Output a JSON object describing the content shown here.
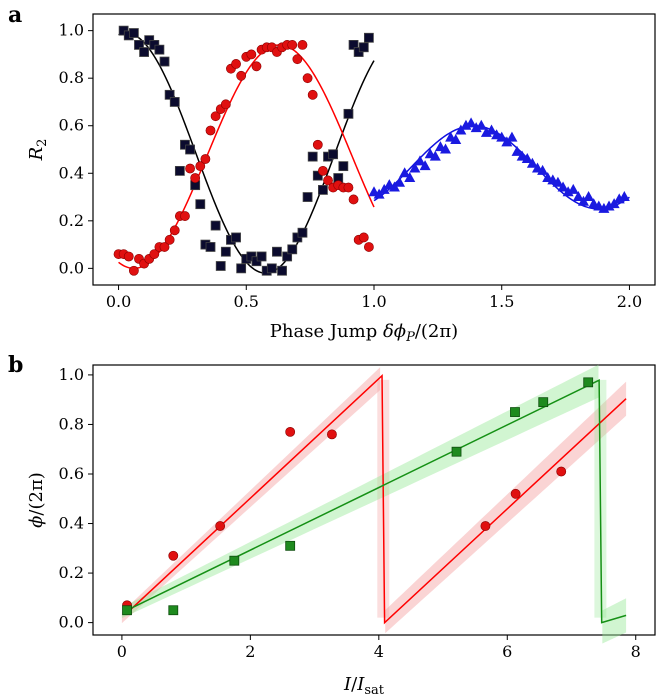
{
  "chart_data": [
    {
      "type": "scatter",
      "panel_label": "a",
      "xlabel": "Phase Jump δϕP/(2π)",
      "ylabel": "R2",
      "xlim": [
        -0.1,
        2.1
      ],
      "ylim": [
        -0.07,
        1.07
      ],
      "xticks": [
        0.0,
        0.5,
        1.0,
        1.5,
        2.0
      ],
      "xtick_labels": [
        "0.0",
        "0.5",
        "1.0",
        "1.5",
        "2.0"
      ],
      "yticks": [
        0.0,
        0.2,
        0.4,
        0.6,
        0.8,
        1.0
      ],
      "ytick_labels": [
        "0.0",
        "0.2",
        "0.4",
        "0.6",
        "0.8",
        "1.0"
      ],
      "grid": false,
      "series": [
        {
          "marker": "square",
          "color": "#0b0b2e",
          "fit_color": "#000000",
          "x": [
            0.02,
            0.04,
            0.06,
            0.08,
            0.1,
            0.12,
            0.14,
            0.16,
            0.18,
            0.2,
            0.22,
            0.24,
            0.26,
            0.28,
            0.3,
            0.32,
            0.34,
            0.36,
            0.38,
            0.4,
            0.42,
            0.44,
            0.46,
            0.48,
            0.5,
            0.52,
            0.54,
            0.56,
            0.58,
            0.6,
            0.62,
            0.64,
            0.66,
            0.68,
            0.7,
            0.72,
            0.74,
            0.76,
            0.78,
            0.8,
            0.82,
            0.84,
            0.86,
            0.88,
            0.9,
            0.92,
            0.94,
            0.96,
            0.98
          ],
          "y": [
            1.0,
            0.98,
            0.99,
            0.94,
            0.91,
            0.96,
            0.94,
            0.92,
            0.87,
            0.73,
            0.7,
            0.41,
            0.52,
            0.5,
            0.35,
            0.27,
            0.1,
            0.09,
            0.18,
            0.01,
            0.07,
            0.12,
            0.13,
            0.0,
            0.04,
            0.05,
            0.03,
            0.05,
            -0.01,
            0.0,
            0.07,
            -0.01,
            0.05,
            0.08,
            0.13,
            0.15,
            0.3,
            0.47,
            0.39,
            0.33,
            0.47,
            0.48,
            0.38,
            0.43,
            0.65,
            0.94,
            0.91,
            0.93,
            0.97
          ]
        },
        {
          "marker": "circle",
          "color": "#e01010",
          "fit_color": "#ff0000",
          "x": [
            0.0,
            0.02,
            0.04,
            0.06,
            0.08,
            0.1,
            0.12,
            0.14,
            0.16,
            0.18,
            0.2,
            0.22,
            0.24,
            0.26,
            0.28,
            0.3,
            0.32,
            0.34,
            0.36,
            0.38,
            0.4,
            0.42,
            0.44,
            0.46,
            0.48,
            0.5,
            0.52,
            0.54,
            0.56,
            0.58,
            0.6,
            0.62,
            0.64,
            0.66,
            0.68,
            0.7,
            0.72,
            0.74,
            0.76,
            0.78,
            0.8,
            0.82,
            0.84,
            0.86,
            0.88,
            0.9,
            0.92,
            0.94,
            0.96,
            0.98
          ],
          "y": [
            0.06,
            0.06,
            0.05,
            -0.01,
            0.04,
            0.02,
            0.04,
            0.06,
            0.09,
            0.09,
            0.12,
            0.16,
            0.22,
            0.22,
            0.42,
            0.38,
            0.43,
            0.46,
            0.58,
            0.64,
            0.67,
            0.69,
            0.84,
            0.86,
            0.81,
            0.89,
            0.9,
            0.85,
            0.92,
            0.93,
            0.93,
            0.91,
            0.93,
            0.94,
            0.94,
            0.88,
            0.94,
            0.8,
            0.73,
            0.52,
            0.41,
            0.37,
            0.34,
            0.35,
            0.34,
            0.34,
            0.29,
            0.12,
            0.13,
            0.09
          ]
        },
        {
          "marker": "triangle",
          "color": "#1a1ae0",
          "fit_color": "#1010e0",
          "x": [
            1.0,
            1.02,
            1.04,
            1.06,
            1.08,
            1.1,
            1.12,
            1.14,
            1.16,
            1.18,
            1.2,
            1.22,
            1.24,
            1.26,
            1.28,
            1.3,
            1.32,
            1.34,
            1.36,
            1.38,
            1.4,
            1.42,
            1.44,
            1.46,
            1.48,
            1.5,
            1.52,
            1.54,
            1.56,
            1.58,
            1.6,
            1.62,
            1.64,
            1.66,
            1.68,
            1.7,
            1.72,
            1.74,
            1.76,
            1.78,
            1.8,
            1.82,
            1.84,
            1.86,
            1.88,
            1.9,
            1.92,
            1.94,
            1.96,
            1.98
          ],
          "y": [
            0.32,
            0.31,
            0.33,
            0.35,
            0.34,
            0.36,
            0.4,
            0.38,
            0.42,
            0.45,
            0.43,
            0.48,
            0.47,
            0.51,
            0.5,
            0.55,
            0.54,
            0.58,
            0.6,
            0.61,
            0.59,
            0.6,
            0.57,
            0.58,
            0.56,
            0.55,
            0.53,
            0.55,
            0.49,
            0.47,
            0.46,
            0.44,
            0.42,
            0.41,
            0.38,
            0.37,
            0.36,
            0.34,
            0.32,
            0.33,
            0.3,
            0.28,
            0.3,
            0.27,
            0.26,
            0.25,
            0.26,
            0.27,
            0.29,
            0.3
          ]
        }
      ]
    },
    {
      "type": "scatter",
      "panel_label": "b",
      "xlabel": "I/Isat",
      "ylabel": "ϕ/(2π)",
      "xlim": [
        -0.45,
        8.3
      ],
      "ylim": [
        -0.05,
        1.04
      ],
      "xticks": [
        0,
        2,
        4,
        6,
        8
      ],
      "xtick_labels": [
        "0",
        "2",
        "4",
        "6",
        "8"
      ],
      "yticks": [
        0.0,
        0.2,
        0.4,
        0.6,
        0.8,
        1.0
      ],
      "ytick_labels": [
        "0.0",
        "0.2",
        "0.4",
        "0.6",
        "0.8",
        "1.0"
      ],
      "grid": false,
      "series": [
        {
          "marker": "circle",
          "color": "#e01010",
          "x": [
            0.08,
            0.8,
            1.53,
            2.62,
            3.27,
            5.66,
            6.13,
            6.84
          ],
          "y": [
            0.07,
            0.27,
            0.39,
            0.77,
            0.76,
            0.39,
            0.52,
            0.61
          ],
          "fit_color": "#ff0000",
          "band_color": "#f4a0a0"
        },
        {
          "marker": "square",
          "color": "#1e8a1e",
          "x": [
            0.08,
            0.8,
            1.75,
            2.62,
            5.21,
            6.12,
            6.56,
            7.26
          ],
          "y": [
            0.05,
            0.05,
            0.25,
            0.31,
            0.69,
            0.85,
            0.89,
            0.97
          ],
          "fit_color": "#159015",
          "band_color": "#9ae89a"
        }
      ]
    }
  ]
}
